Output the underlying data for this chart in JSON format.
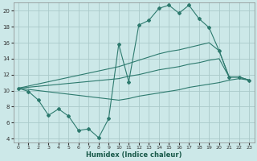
{
  "xlabel": "Humidex (Indice chaleur)",
  "bg_color": "#cce8e8",
  "grid_color": "#aacaca",
  "line_color": "#2d7a6e",
  "xlim": [
    -0.5,
    23.5
  ],
  "ylim": [
    3.5,
    21.0
  ],
  "xticks": [
    0,
    1,
    2,
    3,
    4,
    5,
    6,
    7,
    8,
    9,
    10,
    11,
    12,
    13,
    14,
    15,
    16,
    17,
    18,
    19,
    20,
    21,
    22,
    23
  ],
  "yticks": [
    4,
    6,
    8,
    10,
    12,
    14,
    16,
    18,
    20
  ],
  "line1_x": [
    0,
    1,
    2,
    3,
    4,
    5,
    6,
    7,
    8,
    9,
    10,
    11,
    12,
    13,
    14,
    15,
    16,
    17,
    18,
    19,
    20,
    21,
    22,
    23
  ],
  "line1_y": [
    10.3,
    9.9,
    8.8,
    6.9,
    7.7,
    6.8,
    5.0,
    5.2,
    4.1,
    6.5,
    15.8,
    11.1,
    18.2,
    18.8,
    20.3,
    20.7,
    19.7,
    20.7,
    19.0,
    17.9,
    15.0,
    11.7,
    11.7,
    11.3
  ],
  "line2_x": [
    0,
    10,
    11,
    12,
    13,
    14,
    15,
    16,
    17,
    18,
    19,
    20,
    21,
    22,
    23
  ],
  "line2_y": [
    10.3,
    13.0,
    13.4,
    13.8,
    14.2,
    14.6,
    14.9,
    15.1,
    15.4,
    15.7,
    16.0,
    15.0,
    11.7,
    11.7,
    11.3
  ],
  "line3_x": [
    0,
    10,
    11,
    12,
    13,
    14,
    15,
    16,
    17,
    18,
    19,
    20,
    21,
    22,
    23
  ],
  "line3_y": [
    10.3,
    11.5,
    11.8,
    12.0,
    12.3,
    12.6,
    12.8,
    13.0,
    13.3,
    13.5,
    13.8,
    14.0,
    11.7,
    11.7,
    11.3
  ],
  "line4_x": [
    0,
    10,
    11,
    12,
    13,
    14,
    15,
    16,
    17,
    18,
    19,
    20,
    21,
    22,
    23
  ],
  "line4_y": [
    10.3,
    8.8,
    9.0,
    9.3,
    9.5,
    9.7,
    9.9,
    10.1,
    10.4,
    10.6,
    10.8,
    11.0,
    11.3,
    11.5,
    11.3
  ]
}
